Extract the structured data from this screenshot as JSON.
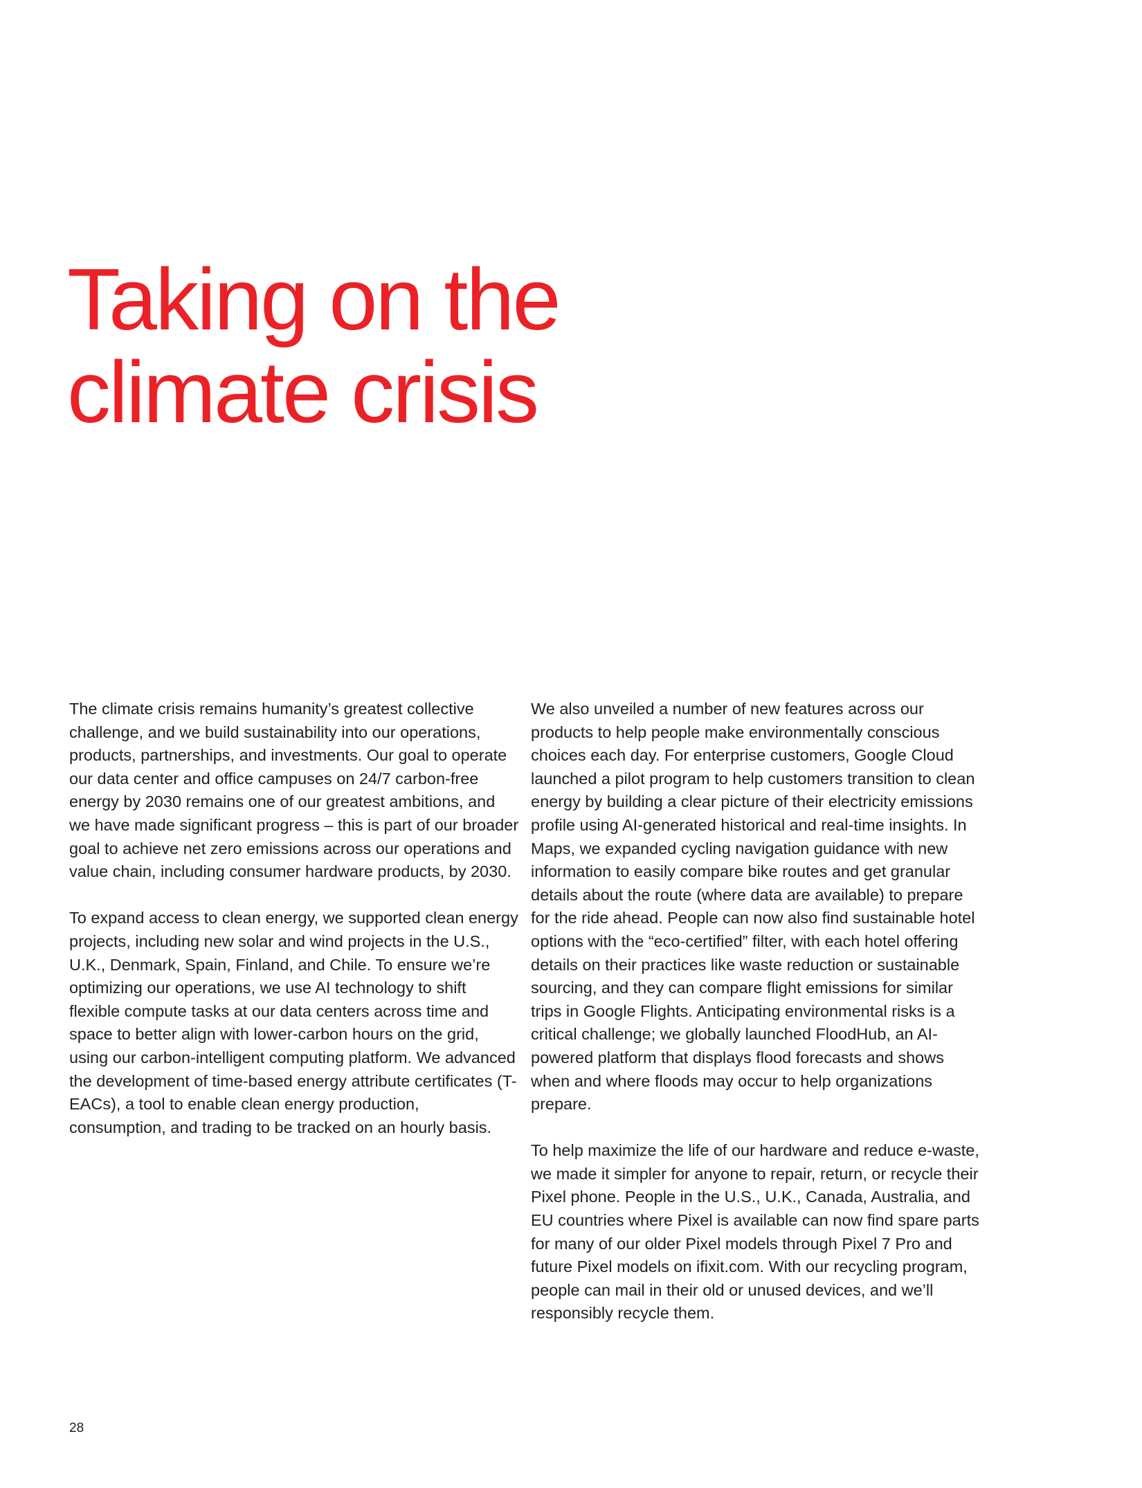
{
  "page": {
    "title_line1": "Taking on the",
    "title_line2": "climate crisis",
    "accent_color": "#ea2227",
    "page_number": "28"
  },
  "left_column": {
    "paragraphs": [
      "The climate crisis remains humanity’s greatest collective challenge, and we build sustainability into our operations, products, partnerships, and investments. Our goal to operate our data center and office campuses on 24/7 carbon-free energy by 2030 remains one of our greatest ambitions, and we have made significant progress – this is part of our broader goal to achieve net zero emissions across our operations and value chain, including consumer hardware products, by 2030.",
      "To expand access to clean energy, we supported clean energy projects, including new solar and wind projects in the U.S., U.K., Denmark, Spain, Finland, and Chile. To ensure we’re optimizing our operations, we use AI technology to shift flexible compute tasks at our data centers across time and space to better align with lower-carbon hours on the grid, using our carbon-intelligent computing platform. We advanced the development of time-based energy attribute certificates (T-EACs), a tool to enable clean energy production, consumption, and trading to be tracked on an hourly basis."
    ]
  },
  "right_column": {
    "paragraphs": [
      "We also unveiled a number of new features across our products to help people make environmentally conscious choices each day. For enterprise customers, Google Cloud launched a pilot program to help customers transition to clean energy by building a clear picture of their electricity emissions profile using AI-generated historical and real-time insights. In Maps, we expanded cycling navigation guidance with new information to easily compare bike routes and get granular details about the route (where data are available) to prepare for the ride ahead. People can now also find sustainable hotel options with the “eco-certified” filter, with each hotel offering details on their practices like waste reduction or sustainable sourcing, and they can compare flight emissions for similar trips in Google Flights. Anticipating environmental risks is a critical challenge; we globally launched FloodHub, an AI-powered platform that displays flood forecasts and shows when and where floods may occur to help organizations prepare.",
      "To help maximize the life of our hardware and reduce e-waste, we made it simpler for anyone to repair, return, or recycle their Pixel phone. People in the U.S., U.K., Canada, Australia, and EU countries where Pixel is available can now find spare parts for many of our older Pixel models through Pixel 7 Pro and future Pixel models on ifixit.com. With our recycling program, people can mail in their old or unused devices, and we’ll responsibly recycle them."
    ]
  }
}
